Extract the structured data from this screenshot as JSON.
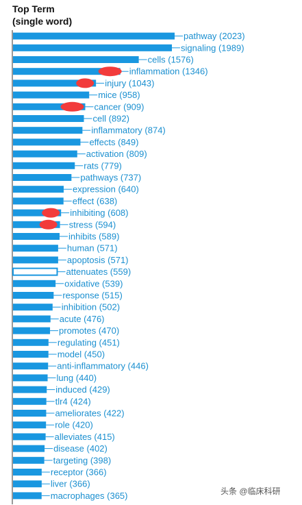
{
  "header": {
    "title_line1": "Top Term",
    "title_line2": "(single word)"
  },
  "watermark": "头条 @临床科研",
  "colors": {
    "bar": "#1997e0",
    "label": "#1a8fd0",
    "highlight_bar_fill": "#ffffff",
    "redaction": "#f23b3b",
    "axis": "#333333"
  },
  "chart_data": {
    "type": "bar",
    "orientation": "horizontal",
    "title": "Top Term (single word)",
    "xlim": [
      0,
      2023
    ],
    "grid": false,
    "legend": "none",
    "categories": [
      "pathway",
      "signaling",
      "cells",
      "inflammation",
      "injury",
      "mice",
      "cancer",
      "cell",
      "inflammatory",
      "effects",
      "activation",
      "rats",
      "pathways",
      "expression",
      "effect",
      "inhibiting",
      "stress",
      "inhibits",
      "human",
      "apoptosis",
      "attenuates",
      "oxidative",
      "response",
      "inhibition",
      "acute",
      "promotes",
      "regulating",
      "model",
      "anti-inflammatory",
      "lung",
      "induced",
      "tlr4",
      "ameliorates",
      "role",
      "alleviates",
      "disease",
      "targeting",
      "receptor",
      "liver",
      "macrophages"
    ],
    "values": [
      2023,
      1989,
      1576,
      1346,
      1043,
      958,
      909,
      892,
      874,
      849,
      809,
      779,
      737,
      640,
      638,
      608,
      594,
      589,
      571,
      571,
      559,
      539,
      515,
      502,
      476,
      470,
      451,
      450,
      446,
      440,
      429,
      424,
      422,
      420,
      415,
      402,
      398,
      366,
      366,
      365
    ],
    "highlighted": [
      "attenuates"
    ],
    "redacted": [
      "inflammation",
      "injury",
      "cancer",
      "inhibiting",
      "stress"
    ]
  }
}
